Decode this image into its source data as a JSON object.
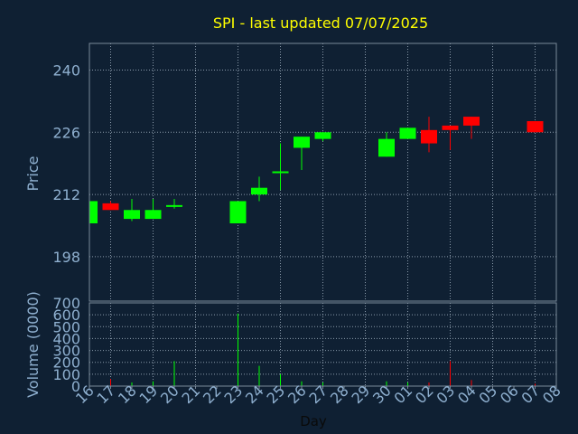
{
  "chart_data": {
    "type": "candlestick",
    "title": "SPI - last updated 07/07/2025",
    "xlabel": "Day",
    "ylabel_price": "Price",
    "ylabel_volume": "Volume (0000)",
    "price_ylim": [
      188,
      246
    ],
    "price_ticks": [
      198,
      212,
      226,
      240
    ],
    "volume_ylim": [
      0,
      700
    ],
    "volume_ticks": [
      0,
      100,
      200,
      300,
      400,
      500,
      600,
      700
    ],
    "grid": true,
    "x_ticks": [
      "16",
      "17",
      "18",
      "19",
      "20",
      "21",
      "22",
      "23",
      "24",
      "25",
      "26",
      "27",
      "28",
      "29",
      "30",
      "01",
      "02",
      "03",
      "04",
      "05",
      "06",
      "07",
      "08"
    ],
    "colors": {
      "background": "#0f2033",
      "title": "#ffff00",
      "axis_text": "#8fb0d0",
      "frame": "#7a8a9a",
      "grid": "#8a9aaa",
      "up": "#00ff00",
      "down": "#ff0000",
      "xlabel": "#0a0a0a"
    },
    "candles": [
      {
        "day": "16",
        "open": 205.5,
        "close": 210.5,
        "high": 210.5,
        "low": 205.5
      },
      {
        "day": "17",
        "open": 210.0,
        "close": 208.5,
        "high": 210.5,
        "low": 208.5
      },
      {
        "day": "18",
        "open": 206.5,
        "close": 208.5,
        "high": 211.0,
        "low": 206.0
      },
      {
        "day": "19",
        "open": 206.5,
        "close": 208.5,
        "high": 211.0,
        "low": 206.5
      },
      {
        "day": "20",
        "open": 209.2,
        "close": 209.6,
        "high": 211.0,
        "low": 208.8
      },
      {
        "day": "23",
        "open": 205.5,
        "close": 210.5,
        "high": 210.5,
        "low": 205.5
      },
      {
        "day": "24",
        "open": 212.0,
        "close": 213.5,
        "high": 216.0,
        "low": 210.5
      },
      {
        "day": "25",
        "open": 216.8,
        "close": 217.2,
        "high": 223.5,
        "low": 213.0
      },
      {
        "day": "26",
        "open": 222.5,
        "close": 225.0,
        "high": 225.0,
        "low": 217.5
      },
      {
        "day": "27",
        "open": 224.5,
        "close": 226.0,
        "high": 226.0,
        "low": 224.0
      },
      {
        "day": "30",
        "open": 220.5,
        "close": 224.5,
        "high": 226.0,
        "low": 220.5
      },
      {
        "day": "01",
        "open": 224.5,
        "close": 227.0,
        "high": 227.0,
        "low": 224.5
      },
      {
        "day": "02",
        "open": 226.5,
        "close": 223.5,
        "high": 229.5,
        "low": 221.5
      },
      {
        "day": "03",
        "open": 227.5,
        "close": 226.5,
        "high": 227.5,
        "low": 222.0
      },
      {
        "day": "04",
        "open": 229.5,
        "close": 227.5,
        "high": 229.5,
        "low": 224.5
      },
      {
        "day": "07",
        "open": 228.5,
        "close": 226.0,
        "high": 228.5,
        "low": 226.0
      }
    ],
    "volume": [
      {
        "day": "17",
        "value": 60,
        "color": "down"
      },
      {
        "day": "18",
        "value": 30,
        "color": "up"
      },
      {
        "day": "19",
        "value": 40,
        "color": "up"
      },
      {
        "day": "20",
        "value": 210,
        "color": "up"
      },
      {
        "day": "23",
        "value": 610,
        "color": "up"
      },
      {
        "day": "24",
        "value": 170,
        "color": "up"
      },
      {
        "day": "25",
        "value": 100,
        "color": "up"
      },
      {
        "day": "26",
        "value": 40,
        "color": "up"
      },
      {
        "day": "27",
        "value": 30,
        "color": "up"
      },
      {
        "day": "30",
        "value": 40,
        "color": "up"
      },
      {
        "day": "01",
        "value": 30,
        "color": "up"
      },
      {
        "day": "02",
        "value": 30,
        "color": "down"
      },
      {
        "day": "03",
        "value": 210,
        "color": "down"
      },
      {
        "day": "04",
        "value": 50,
        "color": "down"
      },
      {
        "day": "07",
        "value": 20,
        "color": "down"
      }
    ]
  }
}
